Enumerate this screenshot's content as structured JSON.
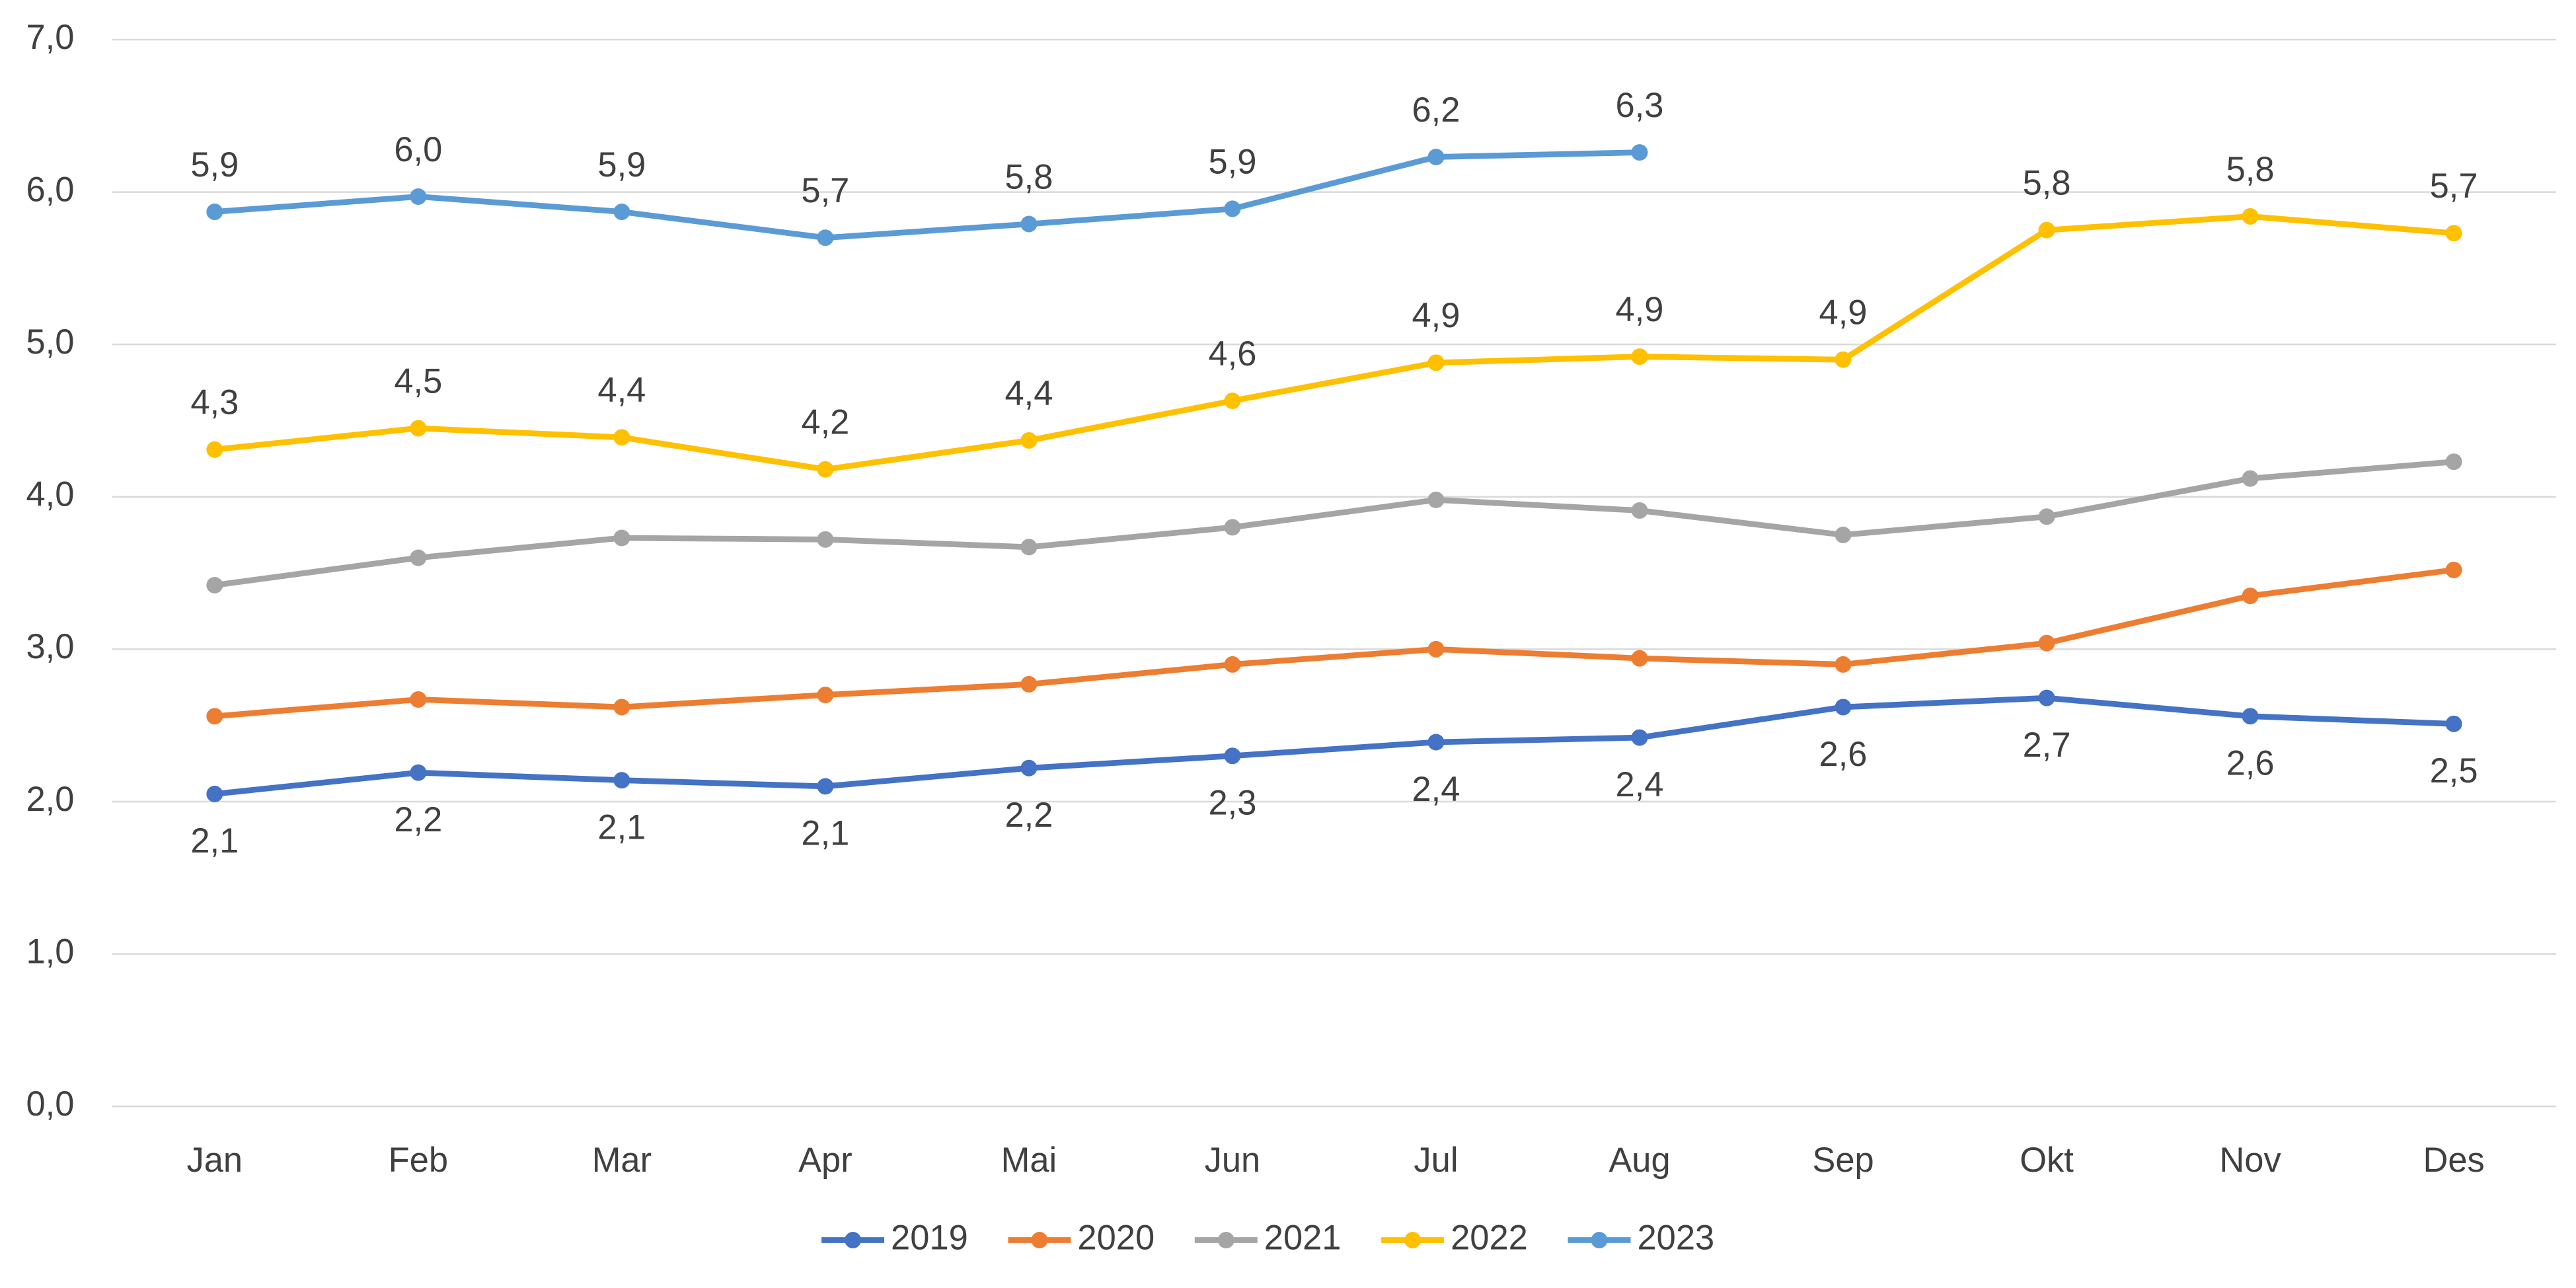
{
  "chart_data": {
    "type": "line",
    "categories": [
      "Jan",
      "Feb",
      "Mar",
      "Apr",
      "Mai",
      "Jun",
      "Jul",
      "Aug",
      "Sep",
      "Okt",
      "Nov",
      "Des"
    ],
    "ylim": [
      0,
      7
    ],
    "yticks": [
      {
        "value": 0,
        "label": "0,0"
      },
      {
        "value": 1,
        "label": "1,0"
      },
      {
        "value": 2,
        "label": "2,0"
      },
      {
        "value": 3,
        "label": "3,0"
      },
      {
        "value": 4,
        "label": "4,0"
      },
      {
        "value": 5,
        "label": "5,0"
      },
      {
        "value": 6,
        "label": "6,0"
      },
      {
        "value": 7,
        "label": "7,0"
      }
    ],
    "grid": true,
    "legend": "bottom",
    "series": [
      {
        "name": "2019",
        "color": "#4472c4",
        "label_position": "below",
        "values": [
          2.05,
          2.19,
          2.14,
          2.1,
          2.22,
          2.3,
          2.39,
          2.42,
          2.62,
          2.68,
          2.56,
          2.51
        ],
        "value_labels": [
          "2,1",
          "2,2",
          "2,1",
          "2,1",
          "2,2",
          "2,3",
          "2,4",
          "2,4",
          "2,6",
          "2,7",
          "2,6",
          "2,5"
        ]
      },
      {
        "name": "2020",
        "color": "#ed7d31",
        "values": [
          2.56,
          2.67,
          2.62,
          2.7,
          2.77,
          2.9,
          3.0,
          2.94,
          2.9,
          3.04,
          3.35,
          3.52
        ]
      },
      {
        "name": "2021",
        "color": "#a5a5a5",
        "values": [
          3.42,
          3.6,
          3.73,
          3.72,
          3.67,
          3.8,
          3.98,
          3.91,
          3.75,
          3.87,
          4.12,
          4.23
        ]
      },
      {
        "name": "2022",
        "color": "#ffc000",
        "label_position": "above",
        "values": [
          4.31,
          4.45,
          4.39,
          4.18,
          4.37,
          4.63,
          4.88,
          4.92,
          4.9,
          5.75,
          5.84,
          5.73
        ],
        "value_labels": [
          "4,3",
          "4,5",
          "4,4",
          "4,2",
          "4,4",
          "4,6",
          "4,9",
          "4,9",
          "4,9",
          "5,8",
          "5,8",
          "5,7"
        ]
      },
      {
        "name": "2023",
        "color": "#5b9bd5",
        "label_position": "above",
        "values": [
          5.87,
          5.97,
          5.87,
          5.7,
          5.79,
          5.89,
          6.23,
          6.26,
          null,
          null,
          null,
          null
        ],
        "value_labels": [
          "5,9",
          "6,0",
          "5,9",
          "5,7",
          "5,8",
          "5,9",
          "6,2",
          "6,3",
          null,
          null,
          null,
          null
        ]
      }
    ]
  }
}
